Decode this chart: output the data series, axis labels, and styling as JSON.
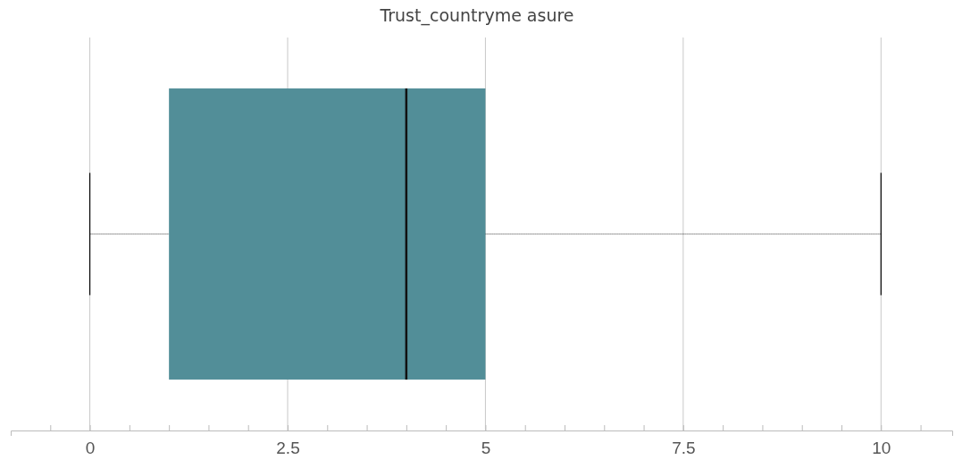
{
  "chart_data": {
    "type": "box",
    "title": "Trust_countryme asure",
    "orientation": "horizontal",
    "categories": [
      null
    ],
    "boxes": [
      {
        "low": 0,
        "q1": 1,
        "median": 4,
        "q3": 5,
        "high": 10
      }
    ],
    "color": "#528e98",
    "xlim": [
      -1,
      10.9
    ],
    "xticks": [
      {
        "value": -0.5,
        "label": null
      },
      0,
      {
        "value": 0.5,
        "label": null
      },
      {
        "value": 1,
        "label": null
      },
      {
        "value": 1.5,
        "label": null
      },
      {
        "value": 2,
        "label": null
      },
      2.5,
      {
        "value": 3,
        "label": null
      },
      {
        "value": 3.5,
        "label": null
      },
      {
        "value": 4,
        "label": null
      },
      {
        "value": 4.5,
        "label": null
      },
      5,
      {
        "value": 5.5,
        "label": null
      },
      {
        "value": 6,
        "label": null
      },
      {
        "value": 6.5,
        "label": null
      },
      {
        "value": 7,
        "label": null
      },
      7.5,
      {
        "value": 8,
        "label": null
      },
      {
        "value": 8.5,
        "label": null
      },
      {
        "value": 9,
        "label": null
      },
      {
        "value": 9.5,
        "label": null
      },
      10,
      {
        "value": 10.5,
        "label": null
      }
    ],
    "grid": "x",
    "tick_labels": "x"
  }
}
